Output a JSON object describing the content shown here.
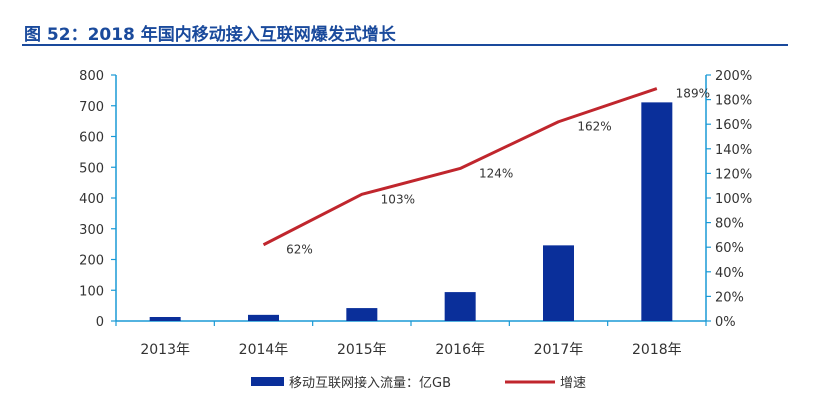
{
  "figure": {
    "title": "图 52：2018 年国内移动接入互联网爆发式增长"
  },
  "chart_data": {
    "type": "bar",
    "categories": [
      "2013年",
      "2014年",
      "2015年",
      "2016年",
      "2017年",
      "2018年"
    ],
    "series": [
      {
        "name": "移动互联网接入流量：亿GB",
        "type": "bar",
        "axis": "left",
        "color": "#0a2f9a",
        "values": [
          13,
          20,
          42,
          94,
          246,
          711
        ]
      },
      {
        "name": "增速",
        "type": "line",
        "axis": "right",
        "color": "#c0262d",
        "values": [
          null,
          62,
          103,
          124,
          162,
          189
        ],
        "labels": [
          "",
          "62%",
          "103%",
          "124%",
          "162%",
          "189%"
        ]
      }
    ],
    "y_left": {
      "ylim": [
        0,
        800
      ],
      "ticks": [
        0,
        100,
        200,
        300,
        400,
        500,
        600,
        700,
        800
      ],
      "tick_labels": [
        "0",
        "100",
        "200",
        "300",
        "400",
        "500",
        "600",
        "700",
        "800"
      ]
    },
    "y_right": {
      "ylim": [
        0,
        200
      ],
      "ticks": [
        0,
        20,
        40,
        60,
        80,
        100,
        120,
        140,
        160,
        180,
        200
      ],
      "tick_labels": [
        "0%",
        "20%",
        "40%",
        "60%",
        "80%",
        "100%",
        "120%",
        "140%",
        "160%",
        "180%",
        "200%"
      ]
    },
    "axis_color": "#1a9ad6",
    "grid": false,
    "legend_position": "bottom"
  }
}
